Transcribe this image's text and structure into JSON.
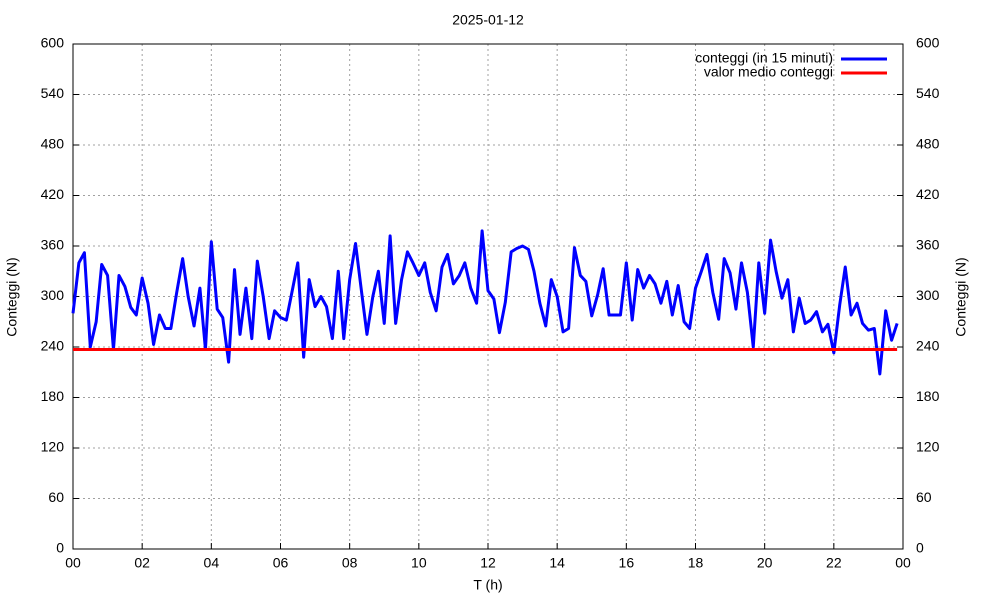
{
  "chart_data": {
    "type": "line",
    "title": "2025-01-12",
    "xlabel": "T (h)",
    "ylabel": "Conteggi (N)",
    "y2label": "Conteggi (N)",
    "xlim": [
      0,
      24
    ],
    "xticks": [
      {
        "value": 0,
        "label": "00"
      },
      {
        "value": 2,
        "label": "02"
      },
      {
        "value": 4,
        "label": "04"
      },
      {
        "value": 6,
        "label": "06"
      },
      {
        "value": 8,
        "label": "08"
      },
      10,
      12,
      14,
      16,
      18,
      20,
      22,
      {
        "value": 24,
        "label": "00"
      }
    ],
    "ylim": [
      0,
      600
    ],
    "yticks": [
      0,
      60,
      120,
      180,
      240,
      300,
      360,
      420,
      480,
      540,
      600
    ],
    "y2lim": [
      0,
      600
    ],
    "y2ticks": [
      0,
      60,
      120,
      180,
      240,
      300,
      360,
      420,
      480,
      540,
      600
    ],
    "grid": true,
    "legend": "top-right",
    "x": [
      0,
      0.17,
      0.33,
      0.5,
      0.67,
      0.83,
      1,
      1.17,
      1.33,
      1.5,
      1.67,
      1.83,
      2,
      2.17,
      2.33,
      2.5,
      2.67,
      2.83,
      3,
      3.17,
      3.33,
      3.5,
      3.67,
      3.83,
      4,
      4.17,
      4.33,
      4.5,
      4.67,
      4.83,
      5,
      5.17,
      5.33,
      5.5,
      5.67,
      5.83,
      6,
      6.17,
      6.33,
      6.5,
      6.67,
      6.83,
      7,
      7.17,
      7.33,
      7.5,
      7.67,
      7.83,
      8,
      8.17,
      8.33,
      8.5,
      8.67,
      8.83,
      9,
      9.17,
      9.33,
      9.5,
      9.67,
      9.83,
      10,
      10.17,
      10.33,
      10.5,
      10.67,
      10.83,
      11,
      11.17,
      11.33,
      11.5,
      11.67,
      11.83,
      12,
      12.17,
      12.33,
      12.5,
      12.67,
      12.83,
      13,
      13.17,
      13.33,
      13.5,
      13.67,
      13.83,
      14,
      14.17,
      14.33,
      14.5,
      14.67,
      14.83,
      15,
      15.17,
      15.33,
      15.5,
      15.67,
      15.83,
      16,
      16.17,
      16.33,
      16.5,
      16.67,
      16.83,
      17,
      17.17,
      17.33,
      17.5,
      17.67,
      17.83,
      18,
      18.17,
      18.33,
      18.5,
      18.67,
      18.83,
      19,
      19.17,
      19.33,
      19.5,
      19.67,
      19.83,
      20,
      20.17,
      20.33,
      20.5,
      20.67,
      20.83,
      21,
      21.17,
      21.33,
      21.5,
      21.67,
      21.83,
      22,
      22.17,
      22.33,
      22.5,
      22.67,
      22.83,
      23,
      23.17,
      23.33,
      23.5,
      23.67,
      23.83
    ],
    "series": [
      {
        "name": "conteggi (in 15 minuti)",
        "color": "#0000ff",
        "values": [
          280,
          340,
          352,
          240,
          270,
          338,
          325,
          237,
          325,
          312,
          287,
          278,
          322,
          292,
          243,
          278,
          262,
          262,
          305,
          345,
          300,
          265,
          310,
          237,
          365,
          285,
          275,
          222,
          332,
          255,
          310,
          250,
          342,
          300,
          250,
          283,
          275,
          272,
          305,
          340,
          228,
          320,
          288,
          300,
          288,
          250,
          330,
          250,
          320,
          363,
          310,
          255,
          300,
          330,
          268,
          372,
          268,
          320,
          353,
          340,
          325,
          340,
          305,
          283,
          335,
          350,
          315,
          325,
          340,
          310,
          292,
          378,
          307,
          297,
          257,
          293,
          353,
          357,
          360,
          356,
          330,
          292,
          265,
          320,
          300,
          258,
          262,
          358,
          325,
          318,
          277,
          302,
          333,
          278,
          278,
          278,
          340,
          272,
          332,
          310,
          325,
          315,
          292,
          318,
          278,
          313,
          270,
          262,
          310,
          330,
          350,
          305,
          273,
          345,
          328,
          285,
          340,
          305,
          240,
          340,
          280,
          367,
          330,
          298,
          320,
          258,
          298,
          268,
          272,
          282,
          258,
          267,
          233,
          290,
          335,
          278,
          292,
          268,
          260,
          262,
          208,
          283,
          248,
          268
        ]
      },
      {
        "name": "valor medio conteggi",
        "color": "#ff0000",
        "x": [
          0,
          23.83
        ],
        "values": [
          237,
          237
        ]
      }
    ]
  }
}
